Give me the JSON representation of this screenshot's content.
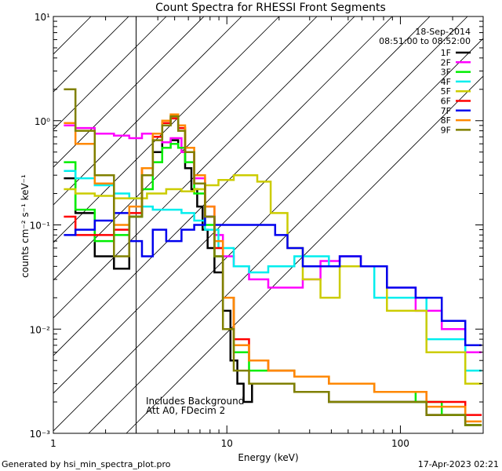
{
  "chart_data": {
    "type": "line",
    "title": "Count Spectra for RHESSI Front Segments",
    "date_text": "18-Sep-2014",
    "time_text": "08:51:00 to 08:52:00",
    "xlabel": "Energy (keV)",
    "ylabel": "counts cm⁻² s⁻¹ keV⁻¹",
    "x_scale": "log",
    "y_scale": "log",
    "xlim": [
      1,
      300
    ],
    "ylim": [
      0.001,
      10
    ],
    "x_ticks": [
      1,
      10,
      100
    ],
    "y_ticks": [
      0.001,
      0.01,
      0.1,
      1,
      10
    ],
    "y_tick_labels": [
      "10⁻³",
      "10⁻²",
      "10⁻¹",
      "10⁰",
      "10¹"
    ],
    "hatched_region": [
      1,
      3
    ],
    "annotation_line1": "Includes Background",
    "annotation_line2": "Att A0, FDecim 2",
    "legend_position": "top-right",
    "series": [
      {
        "name": "1F",
        "color": "#000000",
        "x": [
          1.2,
          1.5,
          2.0,
          2.5,
          3.0,
          3.5,
          4.0,
          4.5,
          5.0,
          5.5,
          6.0,
          6.5,
          7.0,
          7.5,
          8.0,
          9.0,
          10.0,
          11.0,
          12.0,
          13.0,
          15.0,
          20.0,
          30.0,
          50.0,
          100.0,
          200.0,
          280.0
        ],
        "y": [
          0.28,
          0.13,
          0.05,
          0.038,
          0.12,
          0.3,
          0.5,
          0.62,
          0.65,
          0.55,
          0.35,
          0.22,
          0.15,
          0.09,
          0.06,
          0.035,
          0.015,
          0.005,
          0.003,
          0.002,
          0.003,
          0.003,
          0.0025,
          0.002,
          0.002,
          0.0015,
          0.0012
        ]
      },
      {
        "name": "2F",
        "color": "#ff00ff",
        "x": [
          1.2,
          1.5,
          2.0,
          2.5,
          3.0,
          3.5,
          4.0,
          4.5,
          5.0,
          6.0,
          7.0,
          8.0,
          9.0,
          10.0,
          12.0,
          15.0,
          20.0,
          25.0,
          30.0,
          40.0,
          50.0,
          70.0,
          100.0,
          150.0,
          200.0,
          280.0
        ],
        "y": [
          0.9,
          0.85,
          0.75,
          0.72,
          0.68,
          0.75,
          0.7,
          0.62,
          0.68,
          0.5,
          0.28,
          0.15,
          0.08,
          0.05,
          0.04,
          0.03,
          0.025,
          0.025,
          0.03,
          0.045,
          0.05,
          0.04,
          0.025,
          0.015,
          0.01,
          0.006
        ]
      },
      {
        "name": "3F",
        "color": "#00ee00",
        "x": [
          1.2,
          1.5,
          2.0,
          2.5,
          3.0,
          3.5,
          4.0,
          4.5,
          5.0,
          5.5,
          6.0,
          7.0,
          8.0,
          9.0,
          10.0,
          12.0,
          15.0,
          20.0,
          30.0,
          50.0,
          100.0,
          150.0,
          200.0,
          280.0
        ],
        "y": [
          0.4,
          0.14,
          0.07,
          0.08,
          0.12,
          0.22,
          0.4,
          0.55,
          0.6,
          0.55,
          0.4,
          0.2,
          0.1,
          0.05,
          0.02,
          0.006,
          0.004,
          0.004,
          0.0035,
          0.003,
          0.0025,
          0.002,
          0.0015,
          0.0012
        ]
      },
      {
        "name": "4F",
        "color": "#00eeee",
        "x": [
          1.2,
          1.5,
          2.0,
          2.5,
          3.0,
          3.5,
          4.0,
          5.0,
          6.0,
          7.0,
          8.0,
          10.0,
          12.0,
          15.0,
          20.0,
          30.0,
          50.0,
          100.0,
          200.0,
          280.0
        ],
        "y": [
          0.33,
          0.28,
          0.24,
          0.2,
          0.18,
          0.15,
          0.14,
          0.14,
          0.13,
          0.11,
          0.09,
          0.06,
          0.04,
          0.035,
          0.04,
          0.05,
          0.04,
          0.02,
          0.008,
          0.004
        ]
      },
      {
        "name": "5F",
        "color": "#cccc00",
        "x": [
          1.2,
          1.5,
          2.0,
          2.5,
          3.0,
          4.0,
          5.0,
          6.0,
          7.0,
          8.0,
          10.0,
          12.0,
          14.0,
          16.0,
          20.0,
          25.0,
          30.0,
          40.0,
          50.0,
          70.0,
          100.0,
          200.0,
          280.0
        ],
        "y": [
          0.22,
          0.2,
          0.19,
          0.18,
          0.18,
          0.2,
          0.22,
          0.21,
          0.22,
          0.24,
          0.27,
          0.3,
          0.3,
          0.26,
          0.13,
          0.06,
          0.03,
          0.02,
          0.04,
          0.04,
          0.015,
          0.006,
          0.003
        ]
      },
      {
        "name": "6F",
        "color": "#ff0000",
        "x": [
          1.2,
          1.5,
          2.0,
          2.5,
          3.0,
          3.5,
          4.0,
          4.5,
          5.0,
          5.5,
          6.0,
          7.0,
          8.0,
          9.0,
          10.0,
          12.0,
          15.0,
          20.0,
          30.0,
          50.0,
          100.0,
          200.0,
          280.0
        ],
        "y": [
          0.12,
          0.08,
          0.08,
          0.09,
          0.13,
          0.35,
          0.7,
          0.95,
          1.05,
          0.85,
          0.5,
          0.25,
          0.12,
          0.06,
          0.02,
          0.008,
          0.005,
          0.004,
          0.0035,
          0.003,
          0.0025,
          0.002,
          0.0015
        ]
      },
      {
        "name": "7F",
        "color": "#0000ee",
        "x": [
          1.2,
          1.5,
          2.0,
          2.5,
          3.0,
          3.5,
          4.0,
          5.0,
          6.0,
          7.0,
          8.0,
          9.0,
          10.0,
          12.0,
          15.0,
          18.0,
          20.0,
          25.0,
          30.0,
          40.0,
          50.0,
          70.0,
          100.0,
          150.0,
          200.0,
          280.0
        ],
        "y": [
          0.08,
          0.09,
          0.11,
          0.13,
          0.07,
          0.05,
          0.09,
          0.07,
          0.09,
          0.1,
          0.12,
          0.1,
          0.1,
          0.1,
          0.1,
          0.1,
          0.08,
          0.06,
          0.04,
          0.04,
          0.05,
          0.04,
          0.025,
          0.02,
          0.012,
          0.007
        ]
      },
      {
        "name": "8F",
        "color": "#ff8800",
        "x": [
          1.2,
          1.5,
          2.0,
          2.5,
          3.0,
          3.5,
          4.0,
          4.5,
          5.0,
          5.5,
          6.0,
          7.0,
          8.0,
          9.0,
          10.0,
          12.0,
          15.0,
          20.0,
          30.0,
          50.0,
          100.0,
          200.0,
          280.0
        ],
        "y": [
          0.95,
          0.6,
          0.25,
          0.1,
          0.15,
          0.35,
          0.75,
          1.0,
          1.15,
          0.9,
          0.55,
          0.3,
          0.15,
          0.07,
          0.02,
          0.007,
          0.005,
          0.004,
          0.0035,
          0.003,
          0.0025,
          0.0018,
          0.0013
        ]
      },
      {
        "name": "9F",
        "color": "#808000",
        "x": [
          1.2,
          1.5,
          2.0,
          2.5,
          3.0,
          3.5,
          4.0,
          4.5,
          5.0,
          5.5,
          6.0,
          7.0,
          8.0,
          9.0,
          10.0,
          12.0,
          15.0,
          20.0,
          30.0,
          50.0,
          100.0,
          200.0,
          280.0
        ],
        "y": [
          2.0,
          0.8,
          0.3,
          0.05,
          0.12,
          0.3,
          0.65,
          0.9,
          1.1,
          0.8,
          0.5,
          0.25,
          0.12,
          0.05,
          0.01,
          0.004,
          0.003,
          0.003,
          0.0025,
          0.002,
          0.002,
          0.0015,
          0.0012
        ]
      }
    ]
  },
  "footer": {
    "left": "Generated by hsi_min_spectra_plot.pro",
    "right": "17-Apr-2023 02:21"
  }
}
